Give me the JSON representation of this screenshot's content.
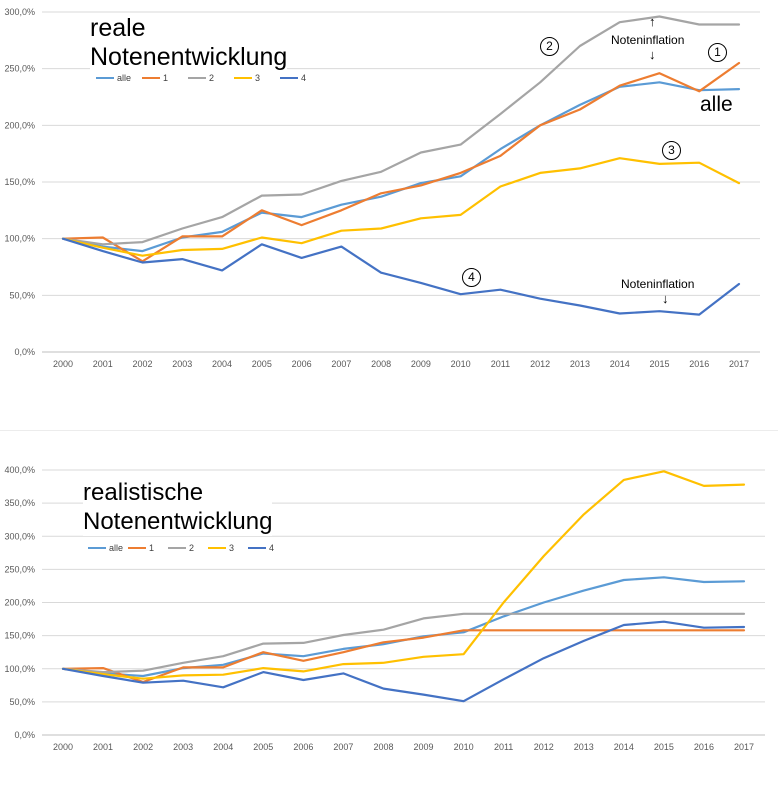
{
  "charts": [
    {
      "id": "top",
      "title_line1": "reale",
      "title_line2": "Notenentwicklung",
      "annotations": {
        "alle_label": "alle",
        "inflation_top": "Noteninflation",
        "inflation_top_arrow_up": "↑",
        "inflation_top_arrow_down": "↓",
        "inflation_bottom": "Noteninflation",
        "inflation_bottom_arrow": "↓",
        "marker_1": "1",
        "marker_2": "2",
        "marker_3": "3",
        "marker_4": "4"
      }
    },
    {
      "id": "bottom",
      "title_line1": "realistische",
      "title_line2": "Notenentwicklung"
    }
  ],
  "chart_data": [
    {
      "type": "line",
      "title": "reale Notenentwicklung",
      "xlabel": "",
      "ylabel": "",
      "x": [
        "2000",
        "2001",
        "2002",
        "2003",
        "2004",
        "2005",
        "2006",
        "2007",
        "2008",
        "2009",
        "2010",
        "2011",
        "2012",
        "2013",
        "2014",
        "2015",
        "2016",
        "2017"
      ],
      "ylim": [
        0,
        300
      ],
      "yticks": [
        "0,0%",
        "50,0%",
        "100,0%",
        "150,0%",
        "200,0%",
        "250,0%",
        "300,0%"
      ],
      "grid": true,
      "legend": "top-left",
      "series": [
        {
          "name": "alle",
          "color": "#5B9BD5",
          "values": [
            100,
            93,
            89,
            101,
            106,
            123,
            119,
            130,
            137,
            149,
            155,
            179,
            200,
            218,
            234,
            238,
            231,
            232
          ]
        },
        {
          "name": "1",
          "color": "#ED7D31",
          "values": [
            100,
            101,
            80,
            102,
            102,
            125,
            112,
            125,
            140,
            147,
            158,
            173,
            200,
            214,
            235,
            246,
            230,
            255
          ]
        },
        {
          "name": "2",
          "color": "#A5A5A5",
          "values": [
            100,
            95,
            97,
            109,
            119,
            138,
            139,
            151,
            159,
            176,
            183,
            210,
            238,
            270,
            291,
            296,
            289,
            289
          ]
        },
        {
          "name": "3",
          "color": "#FFC000",
          "values": [
            100,
            92,
            85,
            90,
            91,
            101,
            96,
            107,
            109,
            118,
            121,
            146,
            158,
            162,
            171,
            166,
            167,
            149
          ]
        },
        {
          "name": "4",
          "color": "#4472C4",
          "values": [
            100,
            89,
            79,
            82,
            72,
            95,
            83,
            93,
            70,
            61,
            51,
            55,
            47,
            41,
            34,
            36,
            33,
            60
          ]
        }
      ]
    },
    {
      "type": "line",
      "title": "realistische Notenentwicklung",
      "xlabel": "",
      "ylabel": "",
      "x": [
        "2000",
        "2001",
        "2002",
        "2003",
        "2004",
        "2005",
        "2006",
        "2007",
        "2008",
        "2009",
        "2010",
        "2011",
        "2012",
        "2013",
        "2014",
        "2015",
        "2016",
        "2017"
      ],
      "ylim": [
        0,
        400
      ],
      "yticks": [
        "0,0%",
        "50,0%",
        "100,0%",
        "150,0%",
        "200,0%",
        "250,0%",
        "300,0%",
        "350,0%",
        "400,0%"
      ],
      "grid": true,
      "legend": "top-left",
      "series": [
        {
          "name": "alle",
          "color": "#5B9BD5",
          "values": [
            100,
            93,
            89,
            101,
            106,
            123,
            119,
            130,
            137,
            149,
            155,
            179,
            200,
            218,
            234,
            238,
            231,
            232
          ]
        },
        {
          "name": "1",
          "color": "#ED7D31",
          "values": [
            100,
            101,
            80,
            102,
            102,
            125,
            112,
            125,
            140,
            147,
            158,
            158,
            158,
            158,
            158,
            158,
            158,
            158
          ]
        },
        {
          "name": "2",
          "color": "#A5A5A5",
          "values": [
            100,
            95,
            97,
            109,
            119,
            138,
            139,
            151,
            159,
            176,
            183,
            183,
            183,
            183,
            183,
            183,
            183,
            183
          ]
        },
        {
          "name": "3",
          "color": "#FFC000",
          "values": [
            100,
            92,
            85,
            90,
            91,
            101,
            96,
            107,
            109,
            118,
            122,
            200,
            270,
            333,
            385,
            398,
            376,
            378
          ]
        },
        {
          "name": "4",
          "color": "#4472C4",
          "values": [
            100,
            89,
            79,
            82,
            72,
            95,
            83,
            93,
            70,
            61,
            51,
            84,
            116,
            142,
            166,
            171,
            162,
            163
          ]
        }
      ]
    }
  ]
}
